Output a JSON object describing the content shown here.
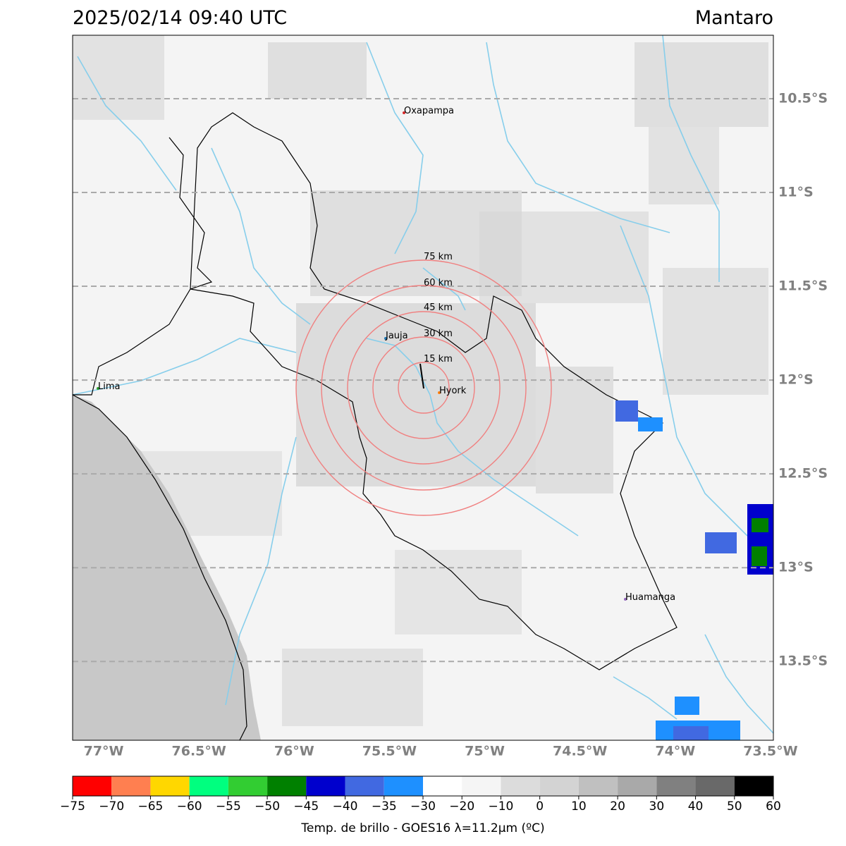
{
  "header": {
    "title": "2025/02/14 09:40 UTC",
    "location": "Mantaro"
  },
  "map": {
    "xlim": [
      -77.163,
      -73.485
    ],
    "ylim": [
      -13.92,
      -10.162
    ],
    "xticks": [
      {
        "value": -77,
        "label": "77°W"
      },
      {
        "value": -76.5,
        "label": "76.5°W"
      },
      {
        "value": -76,
        "label": "76°W"
      },
      {
        "value": -75.5,
        "label": "75.5°W"
      },
      {
        "value": -75,
        "label": "75°W"
      },
      {
        "value": -74.5,
        "label": "74.5°W"
      },
      {
        "value": -74,
        "label": "74°W"
      },
      {
        "value": -73.5,
        "label": "73.5°W"
      }
    ],
    "yticks": [
      {
        "value": -10.5,
        "label": "10.5°S"
      },
      {
        "value": -11,
        "label": "11°S"
      },
      {
        "value": -11.5,
        "label": "11.5°S"
      },
      {
        "value": -12,
        "label": "12°S"
      },
      {
        "value": -12.5,
        "label": "12.5°S"
      },
      {
        "value": -13,
        "label": "13°S"
      },
      {
        "value": -13.5,
        "label": "13.5°S"
      }
    ],
    "grid": true,
    "cities": [
      "Oxapampa",
      "Jauja",
      "Hyork",
      "Lima",
      "Huamanga"
    ],
    "rings": [
      "15 km",
      "30 km",
      "45 km",
      "60 km",
      "75 km"
    ]
  },
  "colorbar": {
    "label": "Temp. de brillo - GOES16 λ=11.2μm (ºC)",
    "ticks": [
      {
        "value": -75,
        "label": "−75"
      },
      {
        "value": -70,
        "label": "−70"
      },
      {
        "value": -65,
        "label": "−65"
      },
      {
        "value": -60,
        "label": "−60"
      },
      {
        "value": -55,
        "label": "−55"
      },
      {
        "value": -50,
        "label": "−50"
      },
      {
        "value": -45,
        "label": "−45"
      },
      {
        "value": -40,
        "label": "−40"
      },
      {
        "value": -35,
        "label": "−35"
      },
      {
        "value": -30,
        "label": "−30"
      },
      {
        "value": -20,
        "label": "−20"
      },
      {
        "value": -10,
        "label": "−10"
      },
      0,
      10,
      20,
      30,
      40,
      50,
      60
    ],
    "colors": [
      "#ff0000",
      "#ff7f50",
      "#ffd700",
      "#00ff7f",
      "#32cd32",
      "#008000",
      "#0000cd",
      "#4169e1",
      "#1e90ff",
      "#ffffff",
      "#f5f5f5",
      "#dcdcdc",
      "#d3d3d3",
      "#c0c0c0",
      "#a9a9a9",
      "#808080",
      "#696969",
      "#000000"
    ]
  }
}
